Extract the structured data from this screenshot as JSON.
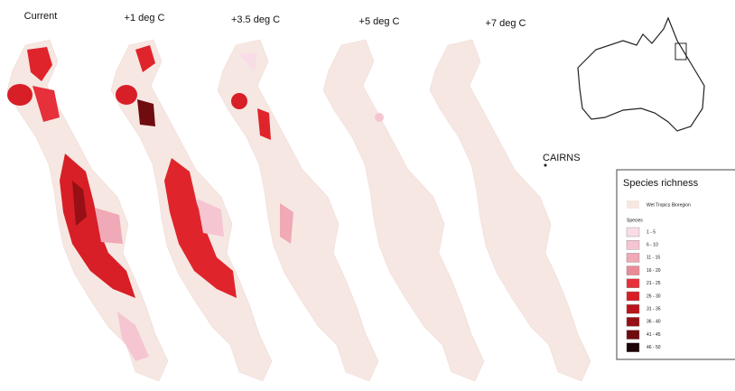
{
  "panels": [
    {
      "title": "Current"
    },
    {
      "title": "+1 deg C"
    },
    {
      "title": "+3.5 deg C"
    },
    {
      "title": "+5 deg C"
    },
    {
      "title": "+7 deg C"
    }
  ],
  "place_label": "CAIRNS",
  "legend": {
    "title": "Species richness",
    "region_label": "Wet Tropics Bioregion",
    "subtitle": "Species",
    "items": [
      {
        "label": "1 - 5",
        "color": "#f9dde6"
      },
      {
        "label": "6 - 10",
        "color": "#f5c6d2"
      },
      {
        "label": "11 - 15",
        "color": "#f0a9b6"
      },
      {
        "label": "16 - 20",
        "color": "#ea8a98"
      },
      {
        "label": "21 - 25",
        "color": "#e6303a"
      },
      {
        "label": "26 - 30",
        "color": "#d81e26"
      },
      {
        "label": "31 - 35",
        "color": "#bb141b"
      },
      {
        "label": "36 - 40",
        "color": "#961016"
      },
      {
        "label": "41 - 45",
        "color": "#6e0c0f"
      },
      {
        "label": "46 - 50",
        "color": "#1c0506"
      }
    ]
  }
}
